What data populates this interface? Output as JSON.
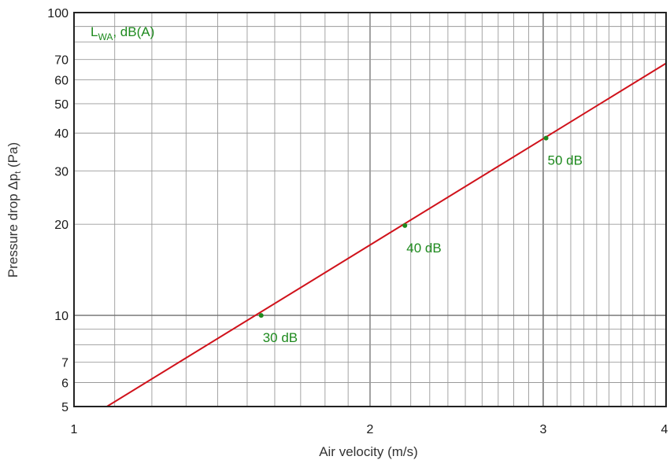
{
  "colors": {
    "line": "#d0121b",
    "annotation": "#1e8a1e",
    "grid": "#9a9a9a",
    "axis": "#222222"
  },
  "chart_data": {
    "type": "line",
    "xscale": "log",
    "yscale": "log",
    "xlabel": "Air velocity (m/s)",
    "ylabel_main": "Pressure drop Δp",
    "ylabel_sub": "t",
    "ylabel_end": " (Pa)",
    "xlim": [
      1,
      4
    ],
    "ylim": [
      5,
      100
    ],
    "grid": true,
    "x_ticks": [
      {
        "value": 1,
        "label": "1"
      },
      {
        "value": 2,
        "label": "2"
      },
      {
        "value": 3,
        "label": "3"
      },
      {
        "value": 4,
        "label": "4"
      }
    ],
    "y_ticks": [
      {
        "value": 5,
        "label": "5"
      },
      {
        "value": 6,
        "label": "6"
      },
      {
        "value": 7,
        "label": "7"
      },
      {
        "value": 10,
        "label": "10"
      },
      {
        "value": 20,
        "label": "20"
      },
      {
        "value": 30,
        "label": "30"
      },
      {
        "value": 40,
        "label": "40"
      },
      {
        "value": 50,
        "label": "50"
      },
      {
        "value": 60,
        "label": "60"
      },
      {
        "value": 70,
        "label": "70"
      },
      {
        "value": 100,
        "label": "100"
      }
    ],
    "legend": {
      "main": "L",
      "sub": "WA",
      "rest": ", dB(A)"
    },
    "series": [
      {
        "x": [
          1.08,
          4.0
        ],
        "y": [
          5.0,
          68.0
        ]
      }
    ],
    "points": [
      {
        "x": 1.55,
        "y": 10,
        "label": "30 dB"
      },
      {
        "x": 2.17,
        "y": 19.8,
        "label": "40 dB"
      },
      {
        "x": 3.02,
        "y": 38.5,
        "label": "50 dB"
      }
    ]
  }
}
